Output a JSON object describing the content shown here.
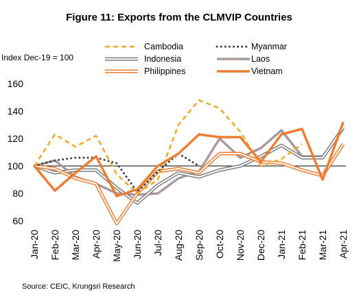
{
  "chart_data": {
    "type": "line",
    "title": "Figure 11: Exports from the CLMVIP Countries",
    "ylabel": "Index Dec-19 = 100",
    "source": "Source: CEIC, Krungsri Research",
    "categories": [
      "Jan-20",
      "Feb-20",
      "Mar-20",
      "Apr-20",
      "May-20",
      "Jun-20",
      "Jul-20",
      "Aug-20",
      "Sep-20",
      "Oct-20",
      "Nov-20",
      "Dec-20",
      "Jan-21",
      "Feb-21",
      "Mar-21",
      "Apr-21"
    ],
    "ylim": [
      60,
      160
    ],
    "yticks": [
      60,
      80,
      100,
      120,
      140,
      160
    ],
    "reference_line": 100,
    "grid": false,
    "legend_position": "top",
    "series": [
      {
        "name": "Cambodia",
        "color": "#f5a623",
        "style": "dashed",
        "values": [
          100,
          123,
          114,
          122,
          94,
          80,
          90,
          130,
          148,
          142,
          125,
          100,
          105,
          116,
          null,
          null
        ]
      },
      {
        "name": "Myanmar",
        "color": "#404040",
        "style": "dotted",
        "values": [
          100,
          104,
          106,
          106,
          102,
          81,
          96,
          109,
          100,
          null,
          null,
          null,
          null,
          null,
          null,
          null
        ]
      },
      {
        "name": "Indonesia",
        "color": "#7f7f7f",
        "style": "double",
        "values": [
          100,
          95,
          97,
          97,
          84,
          73,
          86,
          95,
          92,
          97,
          100,
          107,
          115,
          106,
          106,
          128
        ]
      },
      {
        "name": "Laos",
        "color": "#a89a9a",
        "style": "thick",
        "values": [
          100,
          104,
          92,
          87,
          80,
          79,
          80,
          91,
          96,
          120,
          106,
          113,
          126,
          107,
          107,
          127
        ]
      },
      {
        "name": "Philippines",
        "color": "#ed7d31",
        "style": "double",
        "values": [
          100,
          98,
          91,
          87,
          58,
          80,
          96,
          98,
          95,
          109,
          109,
          103,
          102,
          97,
          93,
          116
        ]
      },
      {
        "name": "Vietnam",
        "color": "#ed7d31",
        "style": "thick",
        "values": [
          100,
          82,
          95,
          107,
          78,
          83,
          100,
          109,
          123,
          121,
          121,
          103,
          123,
          127,
          90,
          132
        ]
      }
    ]
  }
}
